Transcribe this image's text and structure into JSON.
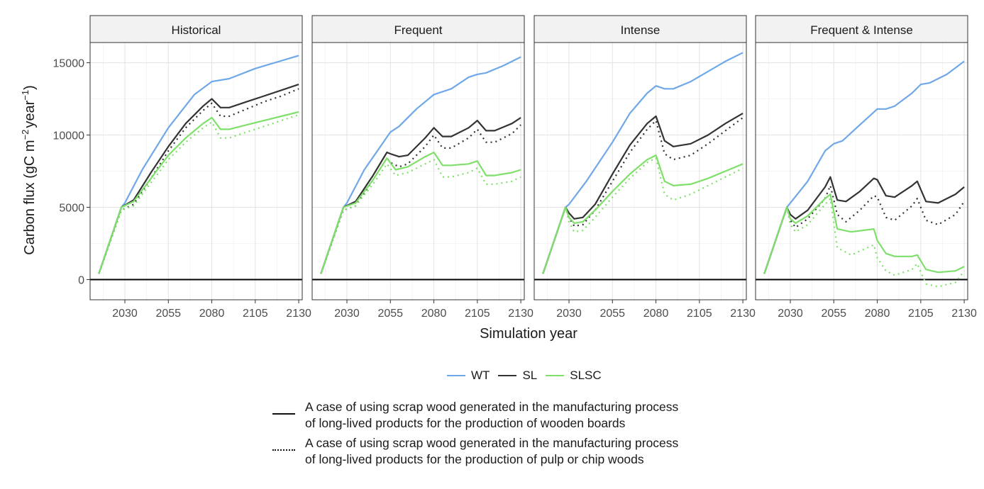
{
  "chart_data": {
    "type": "line",
    "ylabel": "Carbon flux (gC m",
    "ylabel_sup1": "−2",
    "ylabel_mid": "year",
    "ylabel_sup2": "−1",
    "ylabel_end": ")",
    "xlabel": "Simulation year",
    "xlim": [
      2010,
      2132
    ],
    "ylim": [
      -1400,
      16400
    ],
    "xticks": [
      2030,
      2055,
      2080,
      2105,
      2130
    ],
    "yticks": [
      0,
      5000,
      10000,
      15000
    ],
    "grid": true,
    "legend_position": "bottom",
    "colors": {
      "WT": "#6fa8e8",
      "SL": "#333333",
      "SLSC": "#7ee06a"
    },
    "linestyles": {
      "solid": "A case of using scrap wood generated in the manufacturing process of long-lived products for the production of wooden boards",
      "dotted": "A case of using scrap wood generated in the manufacturing process of long-lived products for the production of pulp or chip woods"
    },
    "panels": [
      {
        "title": "Historical",
        "series": [
          {
            "name": "WT",
            "style": "solid",
            "x": [
              2015,
              2028,
              2030,
              2040,
              2055,
              2070,
              2080,
              2090,
              2105,
              2130
            ],
            "y": [
              400,
              5000,
              5300,
              7600,
              10500,
              12800,
              13700,
              13900,
              14600,
              15500
            ]
          },
          {
            "name": "SL",
            "style": "solid",
            "x": [
              2015,
              2028,
              2035,
              2045,
              2055,
              2065,
              2075,
              2080,
              2085,
              2090,
              2100,
              2110,
              2120,
              2130
            ],
            "y": [
              400,
              5000,
              5500,
              7400,
              9200,
              10800,
              12000,
              12500,
              11900,
              11900,
              12300,
              12700,
              13100,
              13500
            ]
          },
          {
            "name": "SL",
            "style": "dotted",
            "x": [
              2015,
              2028,
              2035,
              2045,
              2055,
              2065,
              2075,
              2080,
              2085,
              2090,
              2100,
              2110,
              2120,
              2130
            ],
            "y": [
              400,
              4800,
              5200,
              7000,
              8900,
              10500,
              11700,
              12200,
              11300,
              11300,
              11800,
              12300,
              12700,
              13200
            ]
          },
          {
            "name": "SLSC",
            "style": "solid",
            "x": [
              2015,
              2028,
              2035,
              2045,
              2055,
              2065,
              2075,
              2080,
              2085,
              2090,
              2100,
              2110,
              2120,
              2130
            ],
            "y": [
              400,
              5000,
              5400,
              7000,
              8600,
              9800,
              10800,
              11200,
              10400,
              10400,
              10700,
              11000,
              11300,
              11600
            ]
          },
          {
            "name": "SLSC",
            "style": "dotted",
            "x": [
              2015,
              2028,
              2035,
              2045,
              2055,
              2065,
              2075,
              2080,
              2085,
              2090,
              2100,
              2110,
              2120,
              2130
            ],
            "y": [
              400,
              4800,
              5100,
              6700,
              8300,
              9500,
              10500,
              10900,
              9800,
              9800,
              10200,
              10600,
              11000,
              11400
            ]
          }
        ]
      },
      {
        "title": "Frequent",
        "series": [
          {
            "name": "WT",
            "style": "solid",
            "x": [
              2015,
              2028,
              2030,
              2040,
              2055,
              2060,
              2070,
              2080,
              2090,
              2100,
              2105,
              2110,
              2120,
              2130
            ],
            "y": [
              400,
              5000,
              5300,
              7600,
              10200,
              10600,
              11800,
              12800,
              13200,
              14000,
              14200,
              14300,
              14800,
              15400
            ]
          },
          {
            "name": "SL",
            "style": "solid",
            "x": [
              2015,
              2028,
              2035,
              2045,
              2053,
              2055,
              2060,
              2065,
              2075,
              2080,
              2085,
              2090,
              2100,
              2105,
              2110,
              2115,
              2125,
              2130
            ],
            "y": [
              400,
              5000,
              5400,
              7200,
              8800,
              8700,
              8500,
              8600,
              9800,
              10500,
              9900,
              9900,
              10500,
              11000,
              10300,
              10300,
              10800,
              11200
            ]
          },
          {
            "name": "SL",
            "style": "dotted",
            "x": [
              2015,
              2028,
              2035,
              2045,
              2053,
              2055,
              2060,
              2065,
              2075,
              2080,
              2085,
              2090,
              2100,
              2105,
              2110,
              2115,
              2125,
              2130
            ],
            "y": [
              400,
              4800,
              5100,
              6900,
              8400,
              8100,
              7800,
              8000,
              9200,
              10000,
              9100,
              9100,
              9800,
              10400,
              9500,
              9500,
              10100,
              10700
            ]
          },
          {
            "name": "SLSC",
            "style": "solid",
            "x": [
              2015,
              2028,
              2035,
              2045,
              2053,
              2058,
              2065,
              2075,
              2080,
              2085,
              2090,
              2100,
              2105,
              2110,
              2115,
              2125,
              2130
            ],
            "y": [
              400,
              5000,
              5300,
              6900,
              8400,
              7600,
              7800,
              8500,
              8800,
              7900,
              7900,
              8000,
              8200,
              7200,
              7200,
              7400,
              7600
            ]
          },
          {
            "name": "SLSC",
            "style": "dotted",
            "x": [
              2015,
              2028,
              2035,
              2045,
              2053,
              2058,
              2065,
              2075,
              2080,
              2085,
              2090,
              2100,
              2105,
              2110,
              2115,
              2125,
              2130
            ],
            "y": [
              400,
              4800,
              5100,
              6600,
              8000,
              7200,
              7400,
              8000,
              8300,
              7100,
              7100,
              7400,
              7700,
              6600,
              6600,
              6800,
              7100
            ]
          }
        ]
      },
      {
        "title": "Intense",
        "series": [
          {
            "name": "WT",
            "style": "solid",
            "x": [
              2015,
              2028,
              2030,
              2040,
              2055,
              2065,
              2075,
              2080,
              2085,
              2090,
              2100,
              2110,
              2120,
              2130
            ],
            "y": [
              400,
              5000,
              5200,
              6800,
              9500,
              11500,
              12900,
              13400,
              13200,
              13200,
              13700,
              14400,
              15100,
              15700
            ]
          },
          {
            "name": "SL",
            "style": "solid",
            "x": [
              2015,
              2028,
              2030,
              2033,
              2038,
              2045,
              2055,
              2065,
              2075,
              2080,
              2085,
              2090,
              2100,
              2110,
              2120,
              2130
            ],
            "y": [
              400,
              5000,
              4600,
              4200,
              4300,
              5200,
              7300,
              9300,
              10800,
              11300,
              9600,
              9200,
              9400,
              10000,
              10800,
              11500
            ]
          },
          {
            "name": "SL",
            "style": "dotted",
            "x": [
              2015,
              2028,
              2030,
              2033,
              2038,
              2045,
              2055,
              2065,
              2075,
              2080,
              2085,
              2090,
              2100,
              2110,
              2120,
              2130
            ],
            "y": [
              400,
              5000,
              4300,
              3700,
              3800,
              4800,
              6800,
              8800,
              10400,
              11000,
              8700,
              8300,
              8600,
              9400,
              10300,
              11200
            ]
          },
          {
            "name": "SLSC",
            "style": "solid",
            "x": [
              2015,
              2028,
              2030,
              2033,
              2038,
              2045,
              2055,
              2065,
              2075,
              2080,
              2085,
              2090,
              2100,
              2110,
              2120,
              2130
            ],
            "y": [
              400,
              5000,
              4300,
              3900,
              4000,
              4800,
              6100,
              7300,
              8300,
              8600,
              6800,
              6500,
              6600,
              7000,
              7500,
              8000
            ]
          },
          {
            "name": "SLSC",
            "style": "dotted",
            "x": [
              2015,
              2028,
              2030,
              2033,
              2038,
              2045,
              2055,
              2065,
              2075,
              2080,
              2085,
              2090,
              2100,
              2110,
              2120,
              2130
            ],
            "y": [
              400,
              5000,
              4000,
              3300,
              3400,
              4300,
              5700,
              7000,
              8100,
              8400,
              5900,
              5500,
              5900,
              6500,
              7100,
              7700
            ]
          }
        ]
      },
      {
        "title": "Frequent & Intense",
        "series": [
          {
            "name": "WT",
            "style": "solid",
            "x": [
              2015,
              2028,
              2030,
              2040,
              2050,
              2055,
              2060,
              2070,
              2080,
              2085,
              2090,
              2100,
              2105,
              2110,
              2120,
              2130
            ],
            "y": [
              400,
              5000,
              5300,
              6800,
              8900,
              9400,
              9600,
              10700,
              11800,
              11800,
              12000,
              12900,
              13500,
              13600,
              14200,
              15100
            ]
          },
          {
            "name": "SL",
            "style": "solid",
            "x": [
              2015,
              2028,
              2030,
              2033,
              2040,
              2050,
              2053,
              2057,
              2062,
              2070,
              2078,
              2080,
              2085,
              2090,
              2100,
              2103,
              2108,
              2115,
              2125,
              2130
            ],
            "y": [
              400,
              5000,
              4500,
              4200,
              4800,
              6400,
              7100,
              5500,
              5400,
              6100,
              7000,
              6900,
              5800,
              5700,
              6500,
              6800,
              5400,
              5300,
              5900,
              6400
            ]
          },
          {
            "name": "SL",
            "style": "dotted",
            "x": [
              2015,
              2028,
              2030,
              2033,
              2040,
              2050,
              2053,
              2057,
              2062,
              2070,
              2078,
              2080,
              2085,
              2090,
              2100,
              2103,
              2108,
              2115,
              2125,
              2130
            ],
            "y": [
              400,
              5000,
              4100,
              3600,
              4200,
              5600,
              6500,
              4500,
              4000,
              4800,
              5800,
              5700,
              4300,
              4100,
              5100,
              5600,
              4100,
              3800,
              4500,
              5400
            ]
          },
          {
            "name": "SLSC",
            "style": "solid",
            "x": [
              2015,
              2028,
              2030,
              2033,
              2040,
              2050,
              2053,
              2057,
              2065,
              2078,
              2080,
              2085,
              2090,
              2100,
              2103,
              2108,
              2115,
              2125,
              2130
            ],
            "y": [
              400,
              5000,
              4200,
              3900,
              4400,
              5600,
              5900,
              3500,
              3300,
              3500,
              2700,
              1800,
              1600,
              1600,
              1700,
              700,
              500,
              600,
              900
            ]
          },
          {
            "name": "SLSC",
            "style": "dotted",
            "x": [
              2015,
              2028,
              2030,
              2033,
              2040,
              2050,
              2053,
              2057,
              2065,
              2078,
              2080,
              2085,
              2090,
              2100,
              2103,
              2108,
              2115,
              2125,
              2130
            ],
            "y": [
              400,
              5000,
              3800,
              3300,
              3800,
              5200,
              5600,
              2200,
              1700,
              2400,
              1500,
              600,
              300,
              700,
              1100,
              -300,
              -500,
              -200,
              600
            ]
          }
        ]
      }
    ]
  },
  "legend": {
    "items": [
      "WT",
      "SL",
      "SLSC"
    ]
  },
  "notes": [
    {
      "style": "solid",
      "line1": "A case of using scrap wood generated in the manufacturing process",
      "line2": "of long-lived products for the production of wooden boards"
    },
    {
      "style": "dotted",
      "line1": "A case of using scrap wood generated in the manufacturing process",
      "line2": "of long-lived products for the production of pulp or chip woods"
    }
  ]
}
